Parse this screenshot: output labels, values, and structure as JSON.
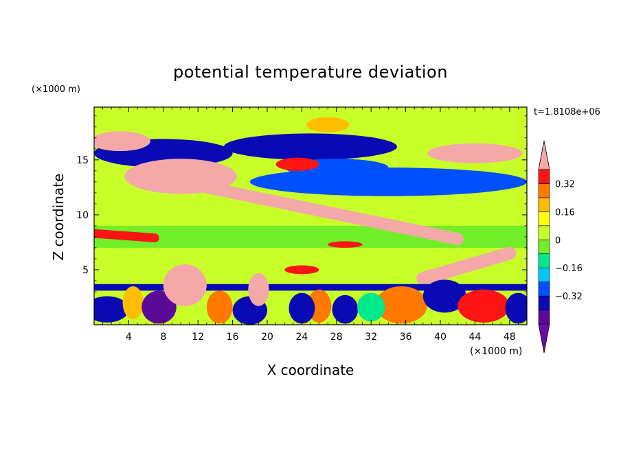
{
  "chart_data": {
    "type": "heatmap",
    "title": "potential temperature deviation",
    "xlabel": "X coordinate",
    "ylabel": "Z coordinate",
    "x_unit": "(×1000 m)",
    "y_unit": "(×1000 m)",
    "time_label": "t=1.8108e+06",
    "xlim": [
      0,
      50
    ],
    "ylim": [
      0,
      19.8
    ],
    "x_ticks": [
      4,
      8,
      12,
      16,
      20,
      24,
      28,
      32,
      36,
      40,
      44,
      48
    ],
    "y_ticks": [
      5,
      10,
      15
    ],
    "colorbar": {
      "levels": [
        -0.48,
        -0.4,
        -0.32,
        -0.24,
        -0.16,
        -0.08,
        0,
        0.08,
        0.16,
        0.24,
        0.32,
        0.4
      ],
      "labels": [
        "0.32",
        "0.16",
        "0",
        "−0.16",
        "−0.32"
      ],
      "label_values": [
        0.32,
        0.16,
        0,
        -0.16,
        -0.32
      ],
      "colors": [
        "#6a0fa8",
        "#5a0a96",
        "#0a0ab4",
        "#0050ff",
        "#00c8ff",
        "#00e88c",
        "#70ee28",
        "#c8ff28",
        "#ffff00",
        "#ffbe00",
        "#ff7800",
        "#ff1414",
        "#f4a8a8"
      ],
      "extend": "both"
    },
    "features": [
      {
        "type": "background",
        "value": 0.02
      },
      {
        "type": "band",
        "x": [
          0,
          50
        ],
        "y": [
          9,
          12.5
        ],
        "value": 0.05
      },
      {
        "type": "band",
        "x": [
          0,
          50
        ],
        "y": [
          7,
          9
        ],
        "value": -0.07
      },
      {
        "type": "band",
        "x": [
          0,
          50
        ],
        "y": [
          5,
          7
        ],
        "value": 0.02
      },
      {
        "type": "band",
        "x": [
          0,
          50
        ],
        "y": [
          12.5,
          18.3
        ],
        "value": 0.06
      },
      {
        "type": "band",
        "x": [
          0,
          50
        ],
        "y": [
          18.3,
          19.8
        ],
        "value": 0.03
      },
      {
        "type": "blob",
        "cx": 8,
        "cy": 15.6,
        "rx": 8,
        "ry": 1.3,
        "value": -0.4
      },
      {
        "type": "blob",
        "cx": 25,
        "cy": 16.2,
        "rx": 10,
        "ry": 1.2,
        "value": -0.36
      },
      {
        "type": "blob",
        "cx": 34,
        "cy": 13,
        "rx": 16,
        "ry": 1.3,
        "value": -0.28
      },
      {
        "type": "blob",
        "cx": 28,
        "cy": 14.3,
        "rx": 6,
        "ry": 0.8,
        "value": -0.3
      },
      {
        "type": "blob",
        "cx": 10,
        "cy": 13.5,
        "rx": 6.5,
        "ry": 1.6,
        "value": 0.42
      },
      {
        "type": "blob",
        "cx": 3,
        "cy": 16.7,
        "rx": 3.5,
        "ry": 0.9,
        "value": 0.42
      },
      {
        "type": "blob",
        "cx": 44,
        "cy": 15.6,
        "rx": 5.5,
        "ry": 0.9,
        "value": 0.42
      },
      {
        "type": "blob",
        "cx": 23.5,
        "cy": 14.6,
        "rx": 2.5,
        "ry": 0.6,
        "value": 0.36
      },
      {
        "type": "blob",
        "cx": 27,
        "cy": 18.2,
        "rx": 2.5,
        "ry": 0.7,
        "value": 0.18
      },
      {
        "type": "ridge",
        "x0": 13,
        "y0": 12.5,
        "x1": 42,
        "y1": 7.8,
        "width": 0.55,
        "value": 0.42
      },
      {
        "type": "ridge",
        "x0": 0,
        "y0": 8.3,
        "x1": 7,
        "y1": 7.9,
        "width": 0.4,
        "value": 0.38
      },
      {
        "type": "ridge",
        "x0": 38,
        "y0": 4.2,
        "x1": 48,
        "y1": 6.5,
        "width": 0.6,
        "value": 0.42
      },
      {
        "type": "blob",
        "cx": 29,
        "cy": 7.3,
        "rx": 2,
        "ry": 0.3,
        "value": 0.35
      },
      {
        "type": "blob",
        "cx": 24,
        "cy": 5,
        "rx": 2,
        "ry": 0.4,
        "value": 0.38
      },
      {
        "type": "band",
        "x": [
          0,
          50
        ],
        "y": [
          3.1,
          3.7
        ],
        "value": -0.38
      },
      {
        "type": "blob",
        "cx": 1.5,
        "cy": 1.4,
        "rx": 2.5,
        "ry": 1.2,
        "value": -0.4
      },
      {
        "type": "blob",
        "cx": 4.5,
        "cy": 2,
        "rx": 1.2,
        "ry": 1.5,
        "value": 0.22
      },
      {
        "type": "blob",
        "cx": 7.5,
        "cy": 1.6,
        "rx": 2,
        "ry": 1.5,
        "value": -0.42
      },
      {
        "type": "blob",
        "cx": 10.5,
        "cy": 3.6,
        "rx": 2.5,
        "ry": 1.9,
        "value": 0.42
      },
      {
        "type": "blob",
        "cx": 14.5,
        "cy": 1.6,
        "rx": 1.5,
        "ry": 1.5,
        "value": 0.3
      },
      {
        "type": "blob",
        "cx": 18,
        "cy": 1.3,
        "rx": 2,
        "ry": 1.3,
        "value": -0.4
      },
      {
        "type": "blob",
        "cx": 19,
        "cy": 3.2,
        "rx": 1.2,
        "ry": 1.5,
        "value": 0.42
      },
      {
        "type": "blob",
        "cx": 26,
        "cy": 1.7,
        "rx": 1.4,
        "ry": 1.5,
        "value": 0.3
      },
      {
        "type": "blob",
        "cx": 24,
        "cy": 1.5,
        "rx": 1.5,
        "ry": 1.4,
        "value": -0.4
      },
      {
        "type": "blob",
        "cx": 29,
        "cy": 1.4,
        "rx": 1.5,
        "ry": 1.3,
        "value": -0.34
      },
      {
        "type": "blob",
        "cx": 35.5,
        "cy": 1.8,
        "rx": 3,
        "ry": 1.7,
        "value": 0.3
      },
      {
        "type": "blob",
        "cx": 40.5,
        "cy": 2.6,
        "rx": 2.5,
        "ry": 1.5,
        "value": -0.4
      },
      {
        "type": "blob",
        "cx": 45,
        "cy": 1.7,
        "rx": 3,
        "ry": 1.5,
        "value": 0.34
      },
      {
        "type": "blob",
        "cx": 49,
        "cy": 1.5,
        "rx": 1.5,
        "ry": 1.4,
        "value": -0.36
      },
      {
        "type": "blob",
        "cx": 32,
        "cy": 1.6,
        "rx": 1.6,
        "ry": 1.3,
        "value": -0.12
      }
    ]
  }
}
